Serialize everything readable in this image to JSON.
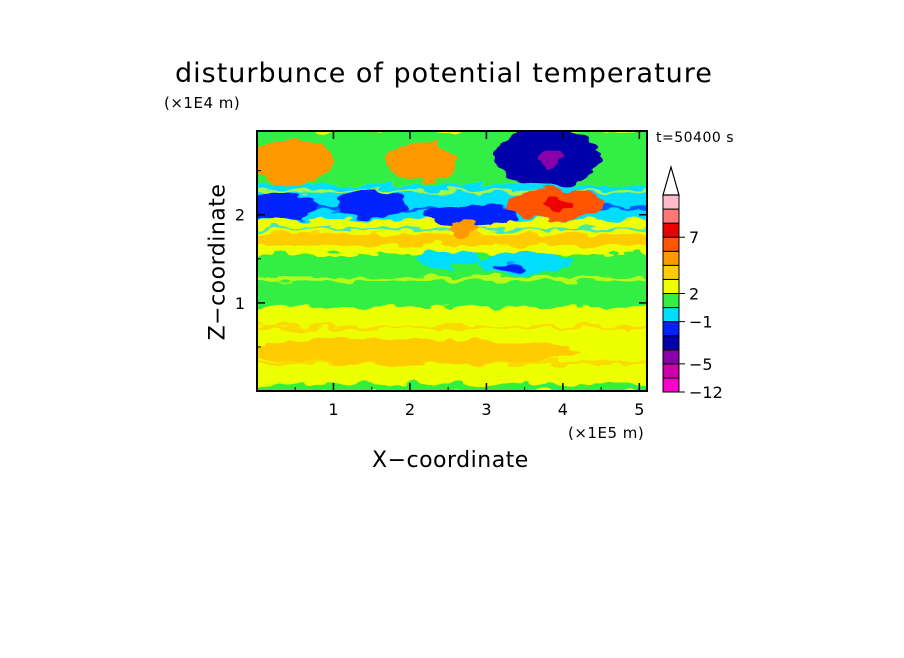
{
  "chart_data": {
    "type": "heatmap",
    "title": "disturbunce of potential temperature",
    "time_label": "t=50400 s",
    "xlabel": "X−coordinate",
    "ylabel": "Z−coordinate",
    "x_multiplier": "(×1E5 m)",
    "y_multiplier": "(×1E4 m)",
    "xlim": [
      0,
      5.1
    ],
    "ylim": [
      0,
      2.95
    ],
    "x_ticks": [
      {
        "value": 1,
        "label": "1"
      },
      {
        "value": 2,
        "label": "2"
      },
      {
        "value": 3,
        "label": "3"
      },
      {
        "value": 4,
        "label": "4"
      },
      {
        "value": 5,
        "label": "5"
      }
    ],
    "y_ticks": [
      {
        "value": 1,
        "label": "1"
      },
      {
        "value": 2,
        "label": "2"
      }
    ],
    "colorbar": {
      "colors": [
        "#ff00cc",
        "#cc00aa",
        "#8800aa",
        "#0000aa",
        "#0022ff",
        "#00ddff",
        "#33ee44",
        "#eeff00",
        "#ffcc00",
        "#ff9900",
        "#ff5500",
        "#ee0000",
        "#ff7777",
        "#ffbbcc"
      ],
      "extend_color": "#ffffff",
      "labels": [
        {
          "index": 0,
          "label": "−12"
        },
        {
          "index": 2,
          "label": "−5"
        },
        {
          "index": 5,
          "label": "−1"
        },
        {
          "index": 7,
          "label": "2"
        },
        {
          "index": 11,
          "label": "7"
        }
      ]
    },
    "features": [
      {
        "x": 0.45,
        "z": 2.6,
        "level": 9,
        "rx": 0.55,
        "rz": 0.25
      },
      {
        "x": 2.15,
        "z": 2.6,
        "level": 9,
        "rx": 0.45,
        "rz": 0.22
      },
      {
        "x": 3.8,
        "z": 2.65,
        "level": 3,
        "rx": 0.7,
        "rz": 0.33
      },
      {
        "x": 3.85,
        "z": 2.65,
        "level": 2,
        "rx": 0.15,
        "rz": 0.1
      },
      {
        "x": 1.5,
        "z": 2.12,
        "level": 4,
        "rx": 0.45,
        "rz": 0.15
      },
      {
        "x": 2.8,
        "z": 2.0,
        "level": 4,
        "rx": 0.6,
        "rz": 0.12
      },
      {
        "x": 0.3,
        "z": 2.1,
        "level": 4,
        "rx": 0.5,
        "rz": 0.15
      },
      {
        "x": 3.9,
        "z": 2.12,
        "level": 10,
        "rx": 0.65,
        "rz": 0.17
      },
      {
        "x": 3.95,
        "z": 2.12,
        "level": 11,
        "rx": 0.2,
        "rz": 0.07
      },
      {
        "x": 2.5,
        "z": 1.5,
        "level": 5,
        "rx": 0.4,
        "rz": 0.1
      },
      {
        "x": 3.5,
        "z": 1.45,
        "level": 5,
        "rx": 0.6,
        "rz": 0.13
      },
      {
        "x": 3.3,
        "z": 1.4,
        "level": 4,
        "rx": 0.2,
        "rz": 0.05
      },
      {
        "x": 2.7,
        "z": 1.85,
        "level": 9,
        "rx": 0.2,
        "rz": 0.1
      },
      {
        "x": 2.0,
        "z": 0.45,
        "level": 8,
        "rx": 2.2,
        "rz": 0.15
      }
    ]
  }
}
